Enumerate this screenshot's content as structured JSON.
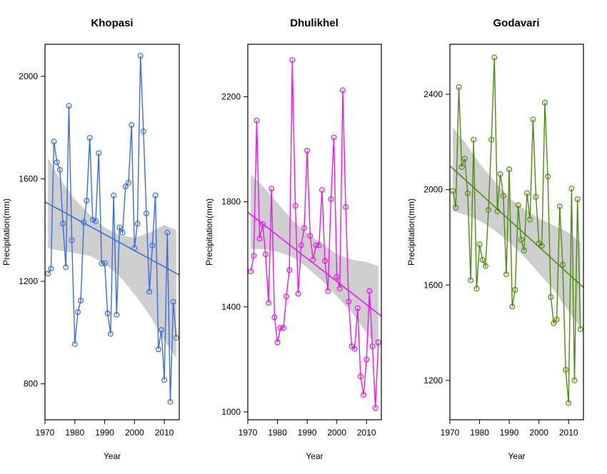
{
  "chart_data": [
    {
      "type": "line",
      "title": "Khopasi",
      "xlabel": "Year",
      "ylabel": "Precipitation(mm)",
      "xlim": [
        1970,
        2015
      ],
      "ylim": [
        660,
        2125
      ],
      "xticks": [
        1970,
        1980,
        1990,
        2000,
        2010
      ],
      "yticks": [
        800,
        1200,
        1600,
        2000
      ],
      "color": "#3a6fd8",
      "series": [
        {
          "x": [
            1971,
            1972,
            1973,
            1974,
            1975,
            1976,
            1977,
            1978,
            1979,
            1980,
            1981,
            1982,
            1983,
            1984,
            1985,
            1986,
            1987,
            1988,
            1989,
            1990,
            1991,
            1992,
            1993,
            1994,
            1995,
            1996,
            1997,
            1998,
            1999,
            2000,
            2001,
            2002,
            2003,
            2004,
            2005,
            2006,
            2007,
            2008,
            2009,
            2010,
            2011,
            2012,
            2013,
            2014
          ],
          "values": [
            1230,
            1250,
            1745,
            1665,
            1635,
            1425,
            1255,
            1885,
            1360,
            955,
            1080,
            1125,
            1430,
            1515,
            1760,
            1440,
            1435,
            1700,
            1270,
            1270,
            1075,
            995,
            1535,
            1070,
            1410,
            1390,
            1570,
            1585,
            1810,
            1330,
            1425,
            2080,
            1785,
            1465,
            1160,
            1340,
            1535,
            935,
            1010,
            815,
            1390,
            730,
            1120,
            980
          ]
        }
      ],
      "trend": {
        "x": [
          1970,
          2015
        ],
        "y": [
          1510,
          1225
        ]
      },
      "ci_band": {
        "x": [
          1971,
          1975,
          1980,
          1985,
          1990,
          1995,
          2000,
          2005,
          2010,
          2014
        ],
        "upper": [
          1680,
          1600,
          1520,
          1460,
          1410,
          1380,
          1370,
          1390,
          1420,
          1400
        ],
        "lower": [
          1330,
          1320,
          1310,
          1300,
          1270,
          1220,
          1150,
          1070,
          970,
          900
        ]
      }
    },
    {
      "type": "line",
      "title": "Dhulikhel",
      "xlabel": "Year",
      "ylabel": "Precipitation(mm)",
      "xlim": [
        1970,
        2015
      ],
      "ylim": [
        970,
        2400
      ],
      "xticks": [
        1970,
        1980,
        1990,
        2000,
        2010
      ],
      "yticks": [
        1000,
        1400,
        1800,
        2200
      ],
      "color": "#ee15ee",
      "series": [
        {
          "x": [
            1971,
            1972,
            1973,
            1974,
            1975,
            1976,
            1977,
            1978,
            1979,
            1980,
            1981,
            1982,
            1983,
            1984,
            1985,
            1986,
            1987,
            1988,
            1989,
            1990,
            1991,
            1992,
            1993,
            1994,
            1995,
            1996,
            1997,
            1998,
            1999,
            2000,
            2001,
            2002,
            2003,
            2004,
            2005,
            2006,
            2007,
            2008,
            2009,
            2010,
            2011,
            2012,
            2013,
            2014
          ],
          "values": [
            1535,
            1595,
            2110,
            1660,
            1715,
            1600,
            1415,
            1850,
            1360,
            1265,
            1320,
            1320,
            1440,
            1540,
            2340,
            1785,
            1450,
            1635,
            1700,
            1995,
            1670,
            1580,
            1635,
            1635,
            1845,
            1575,
            1460,
            1810,
            2045,
            1515,
            1470,
            2225,
            1780,
            1420,
            1250,
            1240,
            1395,
            1135,
            1065,
            1200,
            1460,
            1250,
            1015,
            1265
          ]
        }
      ],
      "trend": {
        "x": [
          1970,
          2015
        ],
        "y": [
          1760,
          1365
        ]
      },
      "ci_band": {
        "x": [
          1971,
          1975,
          1980,
          1985,
          1990,
          1995,
          2000,
          2005,
          2010,
          2014
        ],
        "upper": [
          1905,
          1860,
          1795,
          1730,
          1680,
          1640,
          1600,
          1580,
          1570,
          1555
        ],
        "lower": [
          1620,
          1620,
          1610,
          1590,
          1550,
          1500,
          1440,
          1380,
          1300,
          1240
        ]
      }
    },
    {
      "type": "line",
      "title": "Godavari",
      "xlabel": "Year",
      "ylabel": "Precipitation(mm)",
      "xlim": [
        1970,
        2015
      ],
      "ylim": [
        1035,
        2610
      ],
      "xticks": [
        1970,
        1980,
        1990,
        2000,
        2010
      ],
      "yticks": [
        1200,
        1600,
        2000,
        2400
      ],
      "color": "#4d8c0f",
      "series": [
        {
          "x": [
            1971,
            1972,
            1973,
            1974,
            1975,
            1976,
            1977,
            1978,
            1979,
            1980,
            1981,
            1982,
            1983,
            1984,
            1985,
            1986,
            1987,
            1988,
            1989,
            1990,
            1991,
            1992,
            1993,
            1994,
            1995,
            1996,
            1997,
            1998,
            1999,
            2000,
            2001,
            2002,
            2003,
            2004,
            2005,
            2006,
            2007,
            2008,
            2009,
            2010,
            2011,
            2012,
            2013,
            2014
          ],
          "values": [
            1995,
            1925,
            2430,
            2095,
            2130,
            1985,
            1620,
            2210,
            1585,
            1770,
            1705,
            1680,
            1915,
            2210,
            2555,
            1910,
            2065,
            1975,
            1645,
            2085,
            1510,
            1580,
            1935,
            1790,
            1745,
            1985,
            1875,
            2295,
            1970,
            1775,
            1765,
            2365,
            2055,
            1550,
            1440,
            1455,
            1930,
            1685,
            1245,
            1105,
            2005,
            1200,
            1960,
            1415
          ]
        }
      ],
      "trend": {
        "x": [
          1970,
          2015
        ],
        "y": [
          2100,
          1590
        ]
      },
      "ci_band": {
        "x": [
          1971,
          1975,
          1980,
          1985,
          1990,
          1995,
          2000,
          2005,
          2010,
          2014
        ],
        "upper": [
          2260,
          2200,
          2110,
          2035,
          1965,
          1920,
          1880,
          1850,
          1820,
          1780
        ],
        "lower": [
          1910,
          1895,
          1870,
          1830,
          1780,
          1720,
          1650,
          1580,
          1490,
          1420
        ]
      }
    }
  ]
}
